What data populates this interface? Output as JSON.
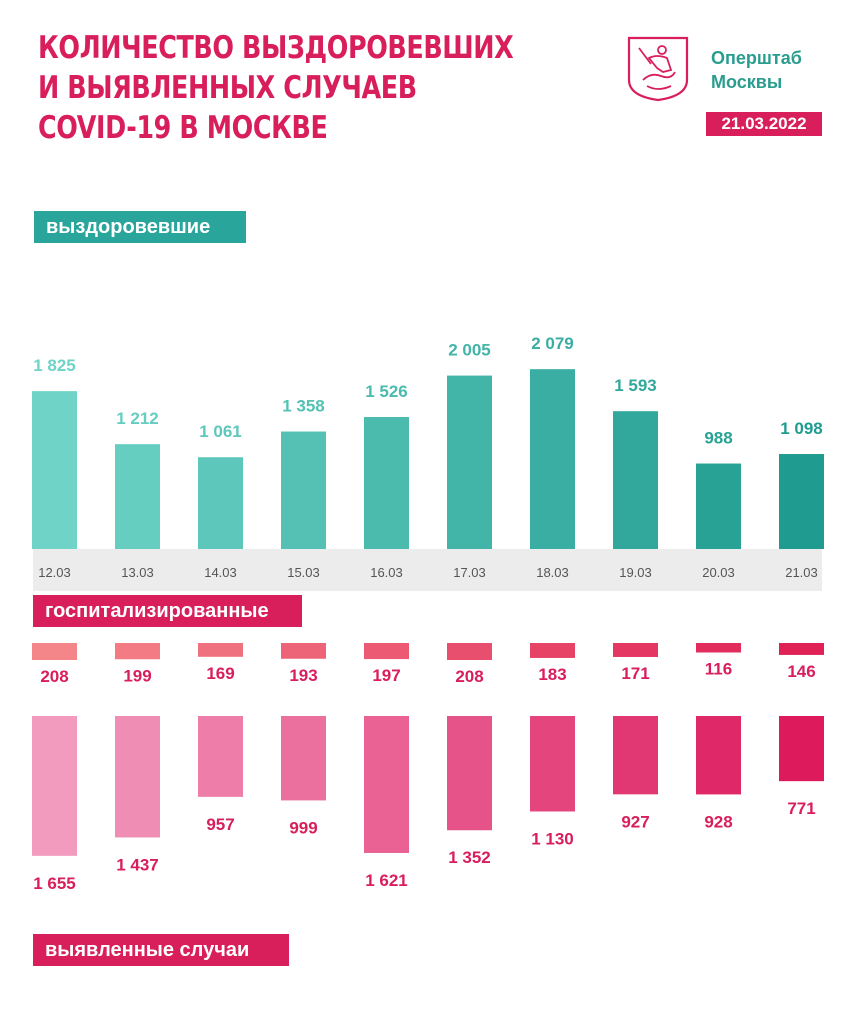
{
  "header": {
    "title_lines": [
      "Количество выздоровевших",
      "и выявленных случаев",
      "COVID-19 в Москве"
    ],
    "brand_lines": [
      "Оперштаб",
      "Москвы"
    ],
    "date": "21.03.2022",
    "logo_icon": "moscow-coat-of-arms-icon"
  },
  "labels": {
    "recovered": "выздоровевшие",
    "hospitalized": "госпитализированные",
    "cases": "выявленные случаи"
  },
  "colors": {
    "brand_red": "#d81e5b",
    "teal_light": "#6fd3c7",
    "teal_dark": "#1f9c8f",
    "pink_light": "#f39bbf",
    "pink_dark": "#dc1a5c",
    "hosp_light": "#f4868a",
    "hosp_dark": "#df2156"
  },
  "chart_data": [
    {
      "type": "bar",
      "name": "выздоровевшие",
      "categories": [
        "12.03",
        "13.03",
        "14.03",
        "15.03",
        "16.03",
        "17.03",
        "18.03",
        "19.03",
        "20.03",
        "21.03"
      ],
      "values": [
        1825,
        1212,
        1061,
        1358,
        1526,
        2005,
        2079,
        1593,
        988,
        1098
      ],
      "value_labels": [
        "1 825",
        "1 212",
        "1 061",
        "1 358",
        "1 526",
        "2 005",
        "2 079",
        "1 593",
        "988",
        "1 098"
      ]
    },
    {
      "type": "bar",
      "name": "госпитализированные",
      "categories": [
        "12.03",
        "13.03",
        "14.03",
        "15.03",
        "16.03",
        "17.03",
        "18.03",
        "19.03",
        "20.03",
        "21.03"
      ],
      "values": [
        208,
        199,
        169,
        193,
        197,
        208,
        183,
        171,
        116,
        146
      ],
      "value_labels": [
        "208",
        "199",
        "169",
        "193",
        "197",
        "208",
        "183",
        "171",
        "116",
        "146"
      ]
    },
    {
      "type": "bar",
      "name": "выявленные случаи",
      "categories": [
        "12.03",
        "13.03",
        "14.03",
        "15.03",
        "16.03",
        "17.03",
        "18.03",
        "19.03",
        "20.03",
        "21.03"
      ],
      "values": [
        1655,
        1437,
        957,
        999,
        1621,
        1352,
        1130,
        927,
        928,
        771
      ],
      "value_labels": [
        "1 655",
        "1 437",
        "957",
        "999",
        "1 621",
        "1 352",
        "1 130",
        "927",
        "928",
        "771"
      ]
    }
  ]
}
